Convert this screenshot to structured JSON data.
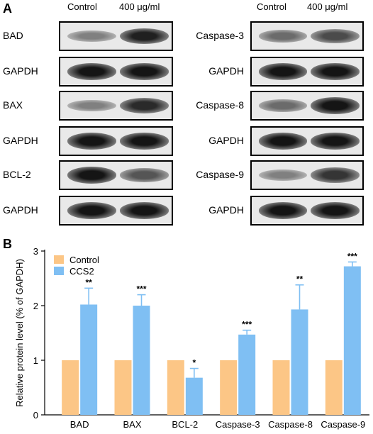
{
  "panel_a": {
    "letter": "A",
    "left_columns": [
      "Control",
      "400 μg/ml"
    ],
    "right_columns": [
      "Control",
      "400 μg/ml"
    ],
    "left_rows": [
      {
        "label": "BAD",
        "bands": [
          0.45,
          0.9
        ]
      },
      {
        "label": "GAPDH",
        "bands": [
          0.95,
          0.95
        ]
      },
      {
        "label": "BAX",
        "bands": [
          0.45,
          0.85
        ]
      },
      {
        "label": "GAPDH",
        "bands": [
          0.95,
          0.95
        ]
      },
      {
        "label": "BCL-2",
        "bands": [
          0.95,
          0.65
        ]
      },
      {
        "label": "GAPDH",
        "bands": [
          0.95,
          0.95
        ]
      }
    ],
    "right_rows": [
      {
        "label": "Caspase-3",
        "bands": [
          0.55,
          0.7
        ]
      },
      {
        "label": "GAPDH",
        "bands": [
          0.95,
          0.95
        ]
      },
      {
        "label": "Caspase-8",
        "bands": [
          0.55,
          0.95
        ]
      },
      {
        "label": "GAPDH",
        "bands": [
          0.95,
          0.95
        ]
      },
      {
        "label": "Caspase-9",
        "bands": [
          0.45,
          0.8
        ]
      },
      {
        "label": "GAPDH",
        "bands": [
          0.95,
          0.95
        ]
      }
    ]
  },
  "panel_b": {
    "letter": "B"
  },
  "colors": {
    "control": "#fcc686",
    "ccs2": "#7fbff3"
  },
  "chart_data": {
    "type": "bar",
    "categories": [
      "BAD",
      "BAX",
      "BCL-2",
      "Caspase-3",
      "Caspase-8",
      "Caspase-9"
    ],
    "series": [
      {
        "name": "Control",
        "values": [
          1,
          1,
          1,
          1,
          1,
          1
        ]
      },
      {
        "name": "CCS2",
        "values": [
          2.02,
          2.0,
          0.68,
          1.47,
          1.93,
          2.72
        ],
        "error": [
          0.3,
          0.2,
          0.17,
          0.08,
          0.45,
          0.08
        ],
        "significance": [
          "**",
          "***",
          "*",
          "***",
          "**",
          "***"
        ]
      }
    ],
    "ylabel": "Relative protein level (% of GAPDH)",
    "xlabel": "",
    "ylim": [
      0,
      3
    ],
    "yticks": [
      "0",
      "1",
      "2",
      "3"
    ],
    "legend": "top-left",
    "grid": false
  }
}
